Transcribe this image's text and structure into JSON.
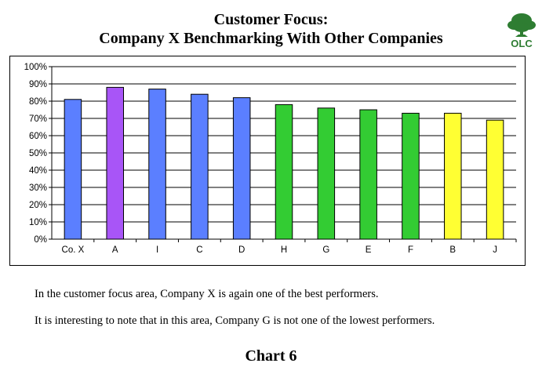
{
  "header": {
    "title_line1": "Customer Focus:",
    "title_line2": "Company X Benchmarking With Other Companies",
    "logo_text": "OLC",
    "logo_color": "#2e7d32"
  },
  "chart_data": {
    "type": "bar",
    "categories": [
      "Co. X",
      "A",
      "I",
      "C",
      "D",
      "H",
      "G",
      "E",
      "F",
      "B",
      "J"
    ],
    "values": [
      81,
      88,
      87,
      84,
      82,
      78,
      76,
      75,
      73,
      73,
      69
    ],
    "colors": [
      "#5b7fff",
      "#a855f7",
      "#5b7fff",
      "#5b7fff",
      "#5b7fff",
      "#33cc33",
      "#33cc33",
      "#33cc33",
      "#33cc33",
      "#ffff33",
      "#ffff33"
    ],
    "ylim": [
      0,
      100
    ],
    "yticks": [
      "0%",
      "10%",
      "20%",
      "30%",
      "40%",
      "50%",
      "60%",
      "70%",
      "80%",
      "90%",
      "100%"
    ],
    "title": "",
    "xlabel": "",
    "ylabel": "",
    "grid": true
  },
  "notes": {
    "line1": "In the customer focus area, Company X is again one of the best performers.",
    "line2": "It is interesting to note that in this area, Company G is not one of the lowest performers."
  },
  "footer": {
    "label": "Chart 6"
  }
}
